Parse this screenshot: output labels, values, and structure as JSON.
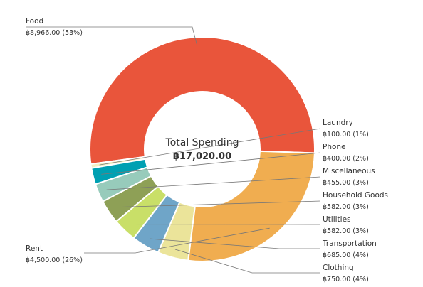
{
  "chart_data": {
    "type": "donut",
    "center_title": "Total Spending",
    "center_total": "฿17,020.00",
    "slices": [
      {
        "name": "Food",
        "value": 8966.0,
        "value_label": "฿8,966.00 (53%)",
        "color": "#e9553b"
      },
      {
        "name": "Laundry",
        "value": 100.0,
        "value_label": "฿100.00 (1%)",
        "color": "#f3f0c4"
      },
      {
        "name": "Phone",
        "value": 400.0,
        "value_label": "฿400.00 (2%)",
        "color": "#00a0b2"
      },
      {
        "name": "Miscellaneous",
        "value": 455.0,
        "value_label": "฿455.00 (3%)",
        "color": "#97cbbb"
      },
      {
        "name": "Household Goods",
        "value": 582.0,
        "value_label": "฿582.00 (3%)",
        "color": "#8ea056"
      },
      {
        "name": "Utilities",
        "value": 582.0,
        "value_label": "฿582.00 (3%)",
        "color": "#c9df68"
      },
      {
        "name": "Transportation",
        "value": 685.0,
        "value_label": "฿685.00 (4%)",
        "color": "#6fa5c8"
      },
      {
        "name": "Clothing",
        "value": 750.0,
        "value_label": "฿750.00 (4%)",
        "color": "#ebe49a"
      },
      {
        "name": "Rent",
        "value": 4500.0,
        "value_label": "฿4,500.00 (26%)",
        "color": "#f0ad50"
      }
    ]
  }
}
